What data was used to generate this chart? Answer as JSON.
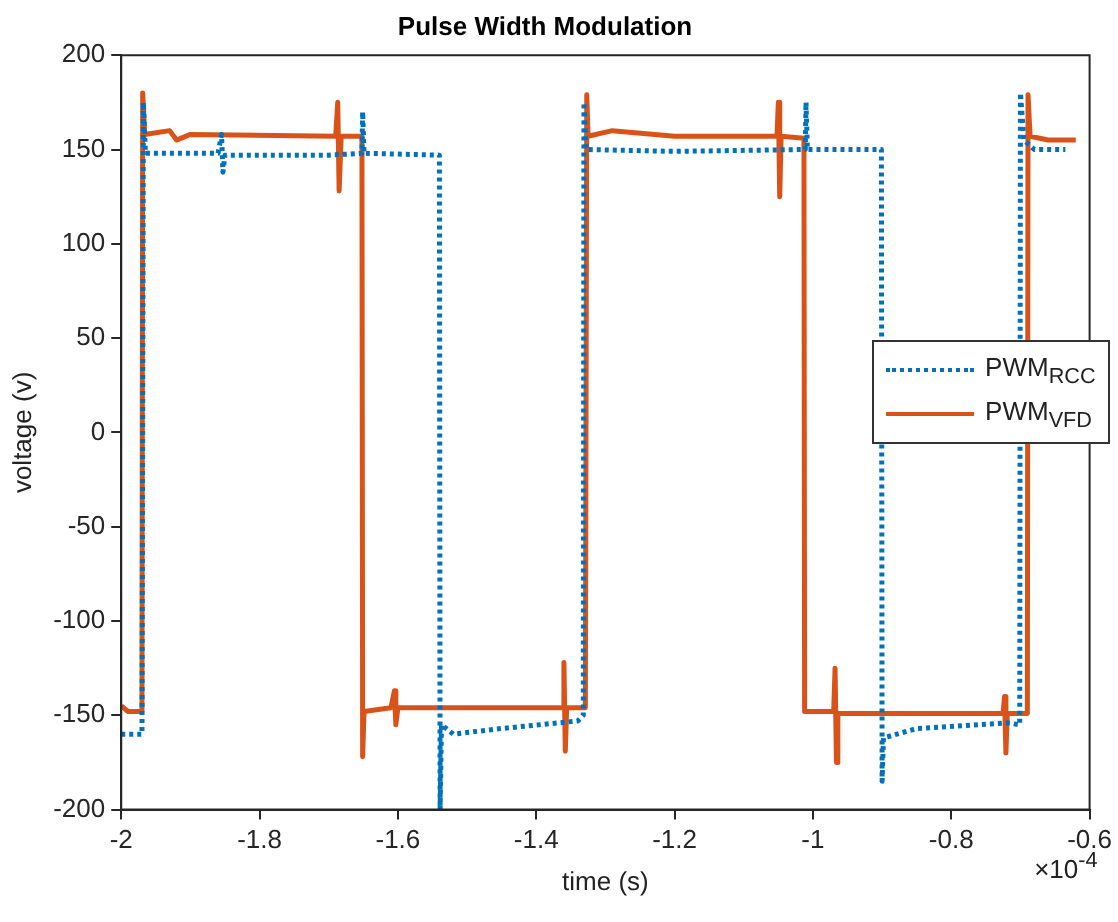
{
  "chart_data": {
    "type": "line",
    "title": "Pulse Width Modulation",
    "xlabel": "time (s)",
    "ylabel": "voltage (v)",
    "xlim": [
      -2,
      -0.6
    ],
    "xticks": [
      -2,
      -1.8,
      -1.6,
      -1.4,
      -1.2,
      -1,
      -0.8,
      -0.6
    ],
    "ylim": [
      -200,
      200
    ],
    "yticks": [
      -200,
      -150,
      -100,
      -50,
      0,
      50,
      100,
      150,
      200
    ],
    "grid": false,
    "legend": "right",
    "marker": "none",
    "annotations": [
      "×10$^{-4}$"
    ],
    "series": [
      {
        "name": "PWM$_{RCC}$",
        "color": "#0072bd",
        "line_style": "dotted",
        "x": [
          -2,
          -1.97,
          -1.968,
          -1.965,
          -1.86,
          -1.855,
          -1.853,
          -1.85,
          -1.7,
          -1.652,
          -1.651,
          -1.649,
          -1.54,
          -1.539,
          -1.537,
          -1.52,
          -1.45,
          -1.34,
          -1.332,
          -1.331,
          -1.328,
          -1.2,
          -1.011,
          -1.01,
          -1.008,
          -0.901,
          -0.9,
          -0.898,
          -0.85,
          -0.72,
          -0.701,
          -0.7,
          -0.695,
          -0.68,
          -0.635
        ],
        "values": [
          -160,
          -160,
          175,
          148,
          148,
          158,
          138,
          147,
          147,
          148,
          170,
          148,
          147,
          -200,
          -155,
          -160,
          -157,
          -153,
          -150,
          175,
          150,
          149,
          150,
          175,
          150,
          150,
          -185,
          -162,
          -157,
          -154,
          -155,
          180,
          155,
          150,
          150
        ]
      },
      {
        "name": "PWM$_{VFD}$",
        "color": "#d95319",
        "line_style": "solid",
        "x": [
          -2,
          -1.99,
          -1.97,
          -1.969,
          -1.966,
          -1.93,
          -1.92,
          -1.9,
          -1.69,
          -1.687,
          -1.685,
          -1.682,
          -1.652,
          -1.651,
          -1.649,
          -1.61,
          -1.605,
          -1.603,
          -1.6,
          -1.362,
          -1.36,
          -1.358,
          -1.356,
          -1.329,
          -1.327,
          -1.325,
          -1.29,
          -1.2,
          -1.052,
          -1.05,
          -1.048,
          -1.046,
          -1.013,
          -1.012,
          -0.97,
          -0.968,
          -0.966,
          -0.964,
          -0.725,
          -0.723,
          -0.721,
          -0.719,
          -0.69,
          -0.689,
          -0.686,
          -0.66,
          -0.62
        ],
        "values": [
          -145,
          -148,
          -148,
          180,
          158,
          160,
          155,
          158,
          157,
          175,
          128,
          157,
          157,
          -172,
          -148,
          -146,
          -137,
          -155,
          -146,
          -146,
          -122,
          -169,
          -146,
          -146,
          179,
          157,
          160,
          157,
          157,
          175,
          125,
          157,
          156,
          -148,
          -148,
          -125,
          -175,
          -149,
          -149,
          -140,
          -170,
          -149,
          -149,
          179,
          157,
          155,
          155
        ]
      }
    ]
  }
}
